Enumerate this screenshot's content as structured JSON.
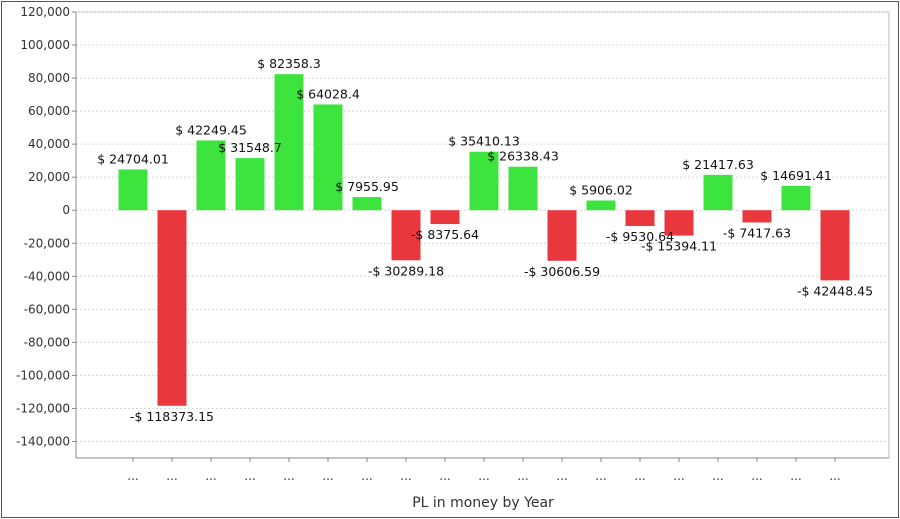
{
  "chart_data": {
    "type": "bar",
    "xlabel": "PL in money by Year",
    "ylabel": "",
    "ylim": [
      -150000,
      120000
    ],
    "yticks": [
      120000,
      100000,
      80000,
      60000,
      40000,
      20000,
      0,
      -20000,
      -40000,
      -60000,
      -80000,
      -100000,
      -120000,
      -140000
    ],
    "ytick_labels": [
      "120,000",
      "100,000",
      "80,000",
      "60,000",
      "40,000",
      "20,000",
      "0",
      "-20,000",
      "-40,000",
      "-60,000",
      "-80,000",
      "-100,000",
      "-120,000",
      "-140,000"
    ],
    "categories": [
      "...",
      "...",
      "...",
      "...",
      "...",
      "...",
      "...",
      "...",
      "...",
      "...",
      "...",
      "...",
      "...",
      "...",
      "...",
      "...",
      "...",
      "...",
      "..."
    ],
    "values": [
      24704.01,
      -118373.15,
      42249.45,
      31548.7,
      82358.3,
      64028.4,
      7955.95,
      -30289.18,
      -8375.64,
      35410.13,
      26338.43,
      -30606.59,
      5906.02,
      -9530.64,
      -15394.11,
      21417.63,
      -7417.63,
      14691.41,
      -42448.45
    ],
    "data_labels": [
      "$ 24704.01",
      "-$ 118373.15",
      "$ 42249.45",
      "$ 31548.7",
      "$ 82358.3",
      "$ 64028.4",
      "$ 7955.95",
      "-$ 30289.18",
      "-$ 8375.64",
      "$ 35410.13",
      "$ 26338.43",
      "-$ 30606.59",
      "$ 5906.02",
      "-$ 9530.64",
      "-$ 15394.11",
      "$ 21417.63",
      "-$ 7417.63",
      "$ 14691.41",
      "-$ 42448.45"
    ],
    "grid": true,
    "colors": {
      "positive": "#3de43d",
      "negative": "#e8373d"
    }
  }
}
